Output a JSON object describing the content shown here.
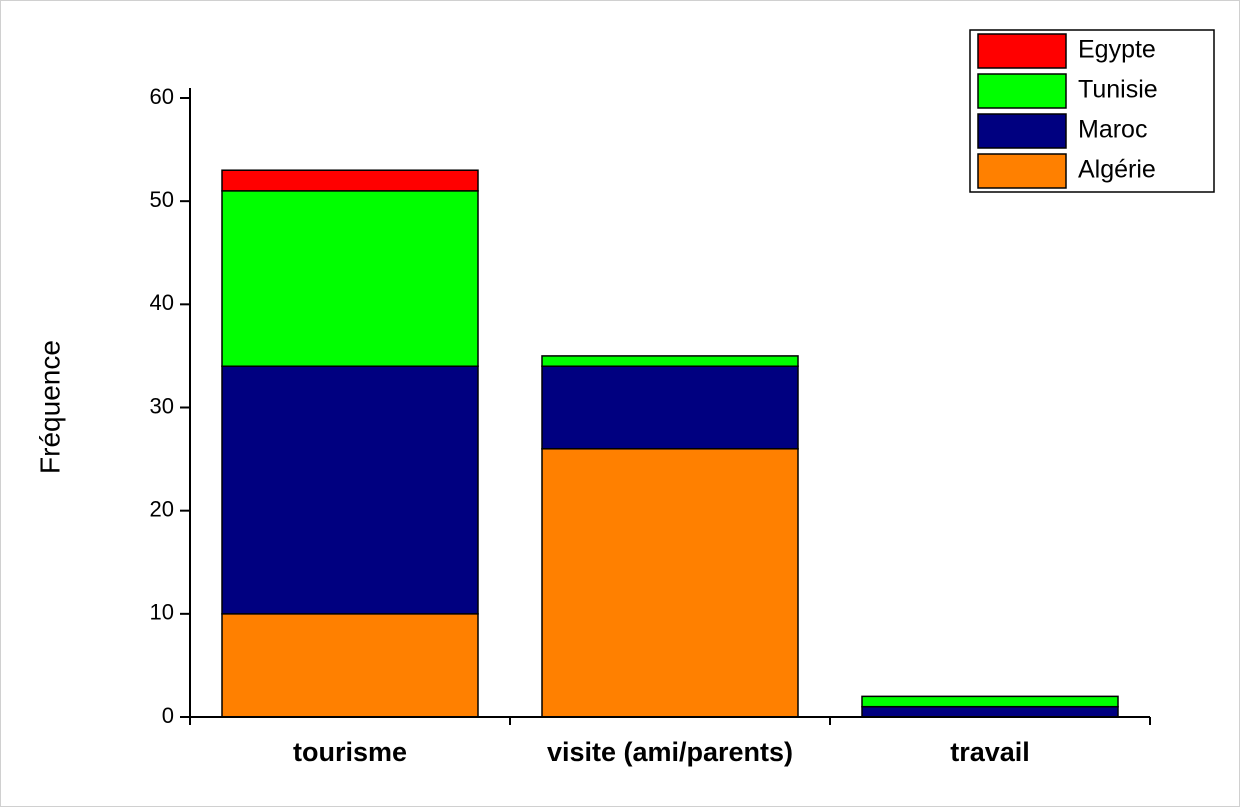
{
  "chart_data": {
    "type": "stacked_bar",
    "y_label": "Fréquence",
    "categories": [
      "tourisme",
      "visite (ami/parents)",
      "travail"
    ],
    "series": [
      {
        "name": "Algérie",
        "color": "#ff8000",
        "values": [
          10,
          26,
          0
        ]
      },
      {
        "name": "Maroc",
        "color": "#000080",
        "values": [
          24,
          8,
          1
        ]
      },
      {
        "name": "Tunisie",
        "color": "#00ff00",
        "values": [
          17,
          1,
          1
        ]
      },
      {
        "name": "Egypte",
        "color": "#ff0000",
        "values": [
          2,
          0,
          0
        ]
      }
    ],
    "ylim": [
      0,
      60
    ],
    "yticks": [
      0,
      10,
      20,
      30,
      40,
      50,
      60
    ],
    "grid": false,
    "legend": "top-right"
  }
}
